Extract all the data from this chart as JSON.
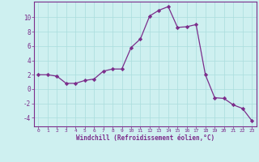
{
  "x": [
    0,
    1,
    2,
    3,
    4,
    5,
    6,
    7,
    8,
    9,
    10,
    11,
    12,
    13,
    14,
    15,
    16,
    17,
    18,
    19,
    20,
    21,
    22,
    23
  ],
  "y": [
    2.0,
    2.0,
    1.8,
    0.8,
    0.8,
    1.2,
    1.4,
    2.5,
    2.8,
    2.8,
    5.8,
    7.0,
    10.2,
    11.0,
    11.5,
    8.6,
    8.7,
    9.0,
    2.0,
    -1.2,
    -1.3,
    -2.2,
    -2.7,
    -4.4
  ],
  "xlim": [
    -0.5,
    23.5
  ],
  "ylim": [
    -5.2,
    12.2
  ],
  "yticks": [
    -4,
    -2,
    0,
    2,
    4,
    6,
    8,
    10
  ],
  "xticks": [
    0,
    1,
    2,
    3,
    4,
    5,
    6,
    7,
    8,
    9,
    10,
    11,
    12,
    13,
    14,
    15,
    16,
    17,
    18,
    19,
    20,
    21,
    22,
    23
  ],
  "xlabel": "Windchill (Refroidissement éolien,°C)",
  "line_color": "#7b2d8b",
  "marker_color": "#7b2d8b",
  "bg_color": "#cef0f0",
  "grid_color": "#aadddd",
  "axis_color": "#7b2d8b",
  "tick_color": "#7b2d8b",
  "label_color": "#7b2d8b"
}
